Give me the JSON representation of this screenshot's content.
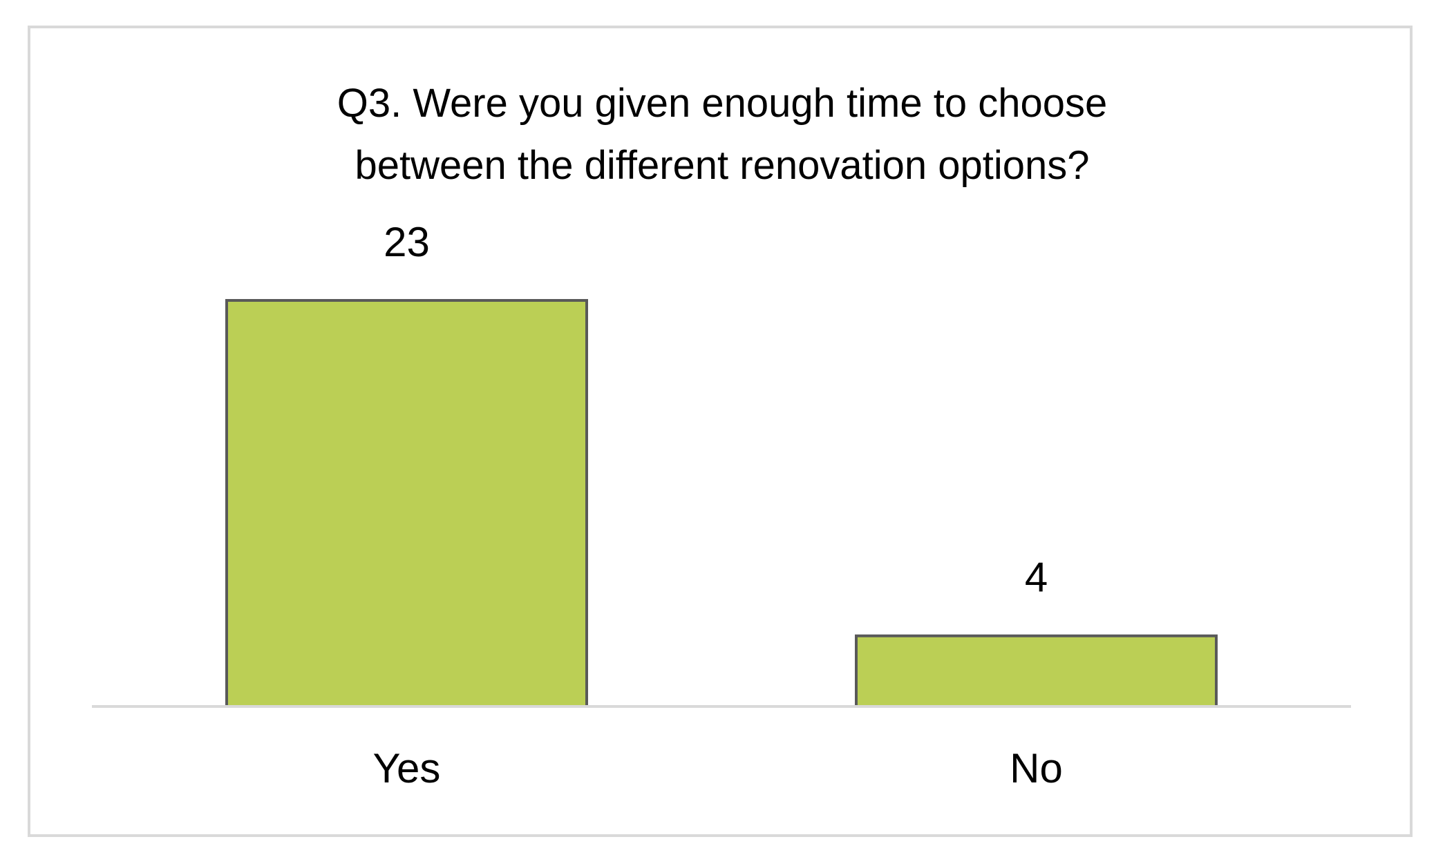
{
  "chart_data": {
    "type": "bar",
    "title": "Q3. Were you given enough time to choose between the different renovation options?",
    "categories": [
      "Yes",
      "No"
    ],
    "values": [
      23,
      4
    ],
    "color": "#bbcf55"
  }
}
